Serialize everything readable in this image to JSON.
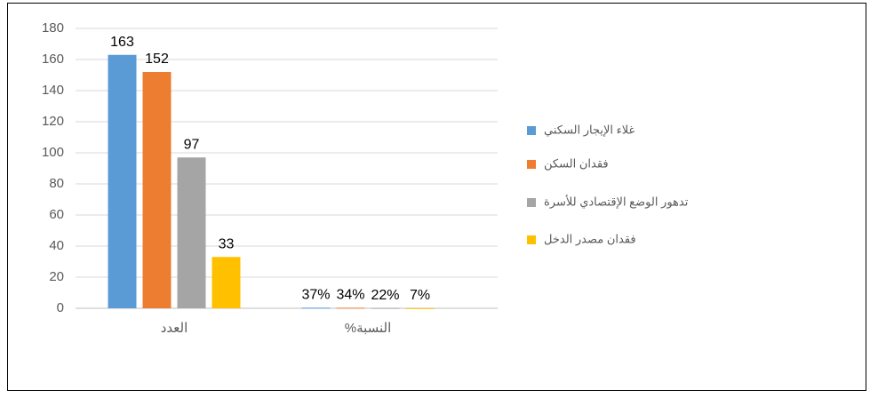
{
  "chart_data": {
    "type": "bar",
    "categories": [
      "العدد",
      "%النسبة"
    ],
    "series": [
      {
        "name": "غلاء الإيجار السكني",
        "color": "#5b9bd5",
        "values": [
          163,
          0.37
        ],
        "value_labels": [
          "163",
          "37%"
        ]
      },
      {
        "name": "فقدان السكن",
        "color": "#ed7d31",
        "values": [
          152,
          0.34
        ],
        "value_labels": [
          "152",
          "34%"
        ]
      },
      {
        "name": "تدهور الوضع الإقتصادي للأسرة",
        "color": "#a5a5a5",
        "values": [
          97,
          0.22
        ],
        "value_labels": [
          "97",
          "22%"
        ]
      },
      {
        "name": "فقدان مصدر الدخل",
        "color": "#ffc000",
        "values": [
          33,
          0.07
        ],
        "value_labels": [
          "33",
          "7%"
        ]
      }
    ],
    "ylim": [
      0,
      180
    ],
    "yticks": [
      0,
      20,
      40,
      60,
      80,
      100,
      120,
      140,
      160,
      180
    ],
    "grid": true,
    "legend": "right"
  }
}
